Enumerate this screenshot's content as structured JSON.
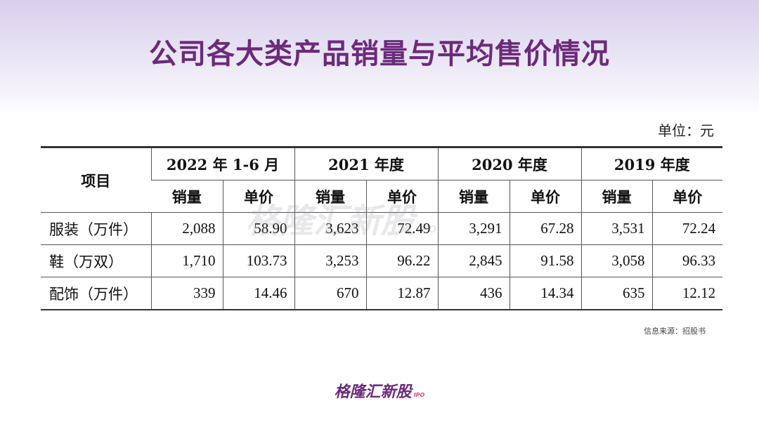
{
  "title": "公司各大类产品销量与平均售价情况",
  "unit_label": "单位：元",
  "table": {
    "item_header": "项目",
    "periods": [
      "2022 年 1-6 月",
      "2021 年度",
      "2020 年度",
      "2019 年度"
    ],
    "sub_headers": [
      "销量",
      "单价"
    ],
    "rows": [
      {
        "label": "服装（万件）",
        "values": [
          "2,088",
          "58.90",
          "3,623",
          "72.49",
          "3,291",
          "67.28",
          "3,531",
          "72.24"
        ]
      },
      {
        "label": "鞋（万双）",
        "values": [
          "1,710",
          "103.73",
          "3,253",
          "96.22",
          "2,845",
          "91.58",
          "3,058",
          "96.33"
        ]
      },
      {
        "label": "配饰（万件）",
        "values": [
          "339",
          "14.46",
          "670",
          "12.87",
          "436",
          "14.34",
          "635",
          "12.12"
        ]
      }
    ]
  },
  "source": "信息来源：招股书",
  "watermark": {
    "text": "格隆汇新股",
    "suffix": "IPO"
  },
  "logo": {
    "text": "格隆汇新股",
    "suffix": "IPO"
  },
  "colors": {
    "title": "#6b2a7a",
    "accent": "#e0457b"
  }
}
